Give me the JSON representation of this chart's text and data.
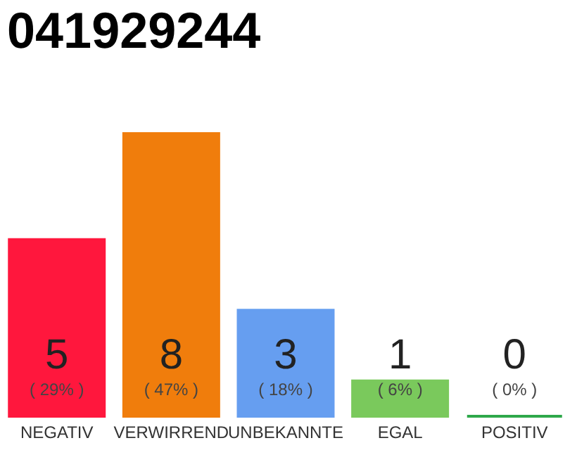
{
  "chart_data": {
    "type": "bar",
    "title": "041929244",
    "categories": [
      "NEGATIV",
      "VERWIRREND",
      "UNBEKANNTE",
      "EGAL",
      "POSITIV"
    ],
    "values": [
      5,
      8,
      3,
      1,
      0
    ],
    "colors": [
      "#ff173d",
      "#f07d0c",
      "#669ef0",
      "#7ac95c",
      "#2ea84a"
    ],
    "data_labels": true,
    "annotations": [
      "( 29% )",
      "( 47% )",
      "( 18% )",
      "( 6% )",
      "( 0% )"
    ]
  }
}
